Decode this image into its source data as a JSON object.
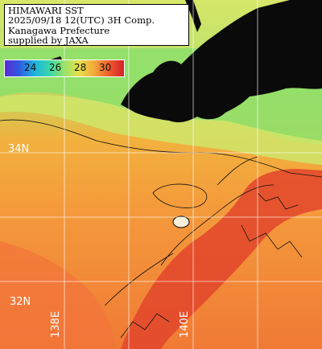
{
  "header": {
    "line1": "HIMAWARI SST",
    "line2": "2025/09/18 12(UTC) 3H Comp.",
    "line3": "Kanagawa Prefecture",
    "line4": "supplied by JAXA"
  },
  "legend": {
    "unit_values": [
      "24",
      "26",
      "28",
      "30"
    ]
  },
  "grid_labels": {
    "lat_34": "34N",
    "lat_32": "32N",
    "lon_138": "138E",
    "lon_140": "140E"
  },
  "colors": {
    "land": "#0a0a0a",
    "cool_water": "#8fe06a",
    "mid_water": "#f2b13e",
    "warm_water": "#f07a35",
    "hot_water": "#e2452b",
    "grid": "#ffffff"
  }
}
